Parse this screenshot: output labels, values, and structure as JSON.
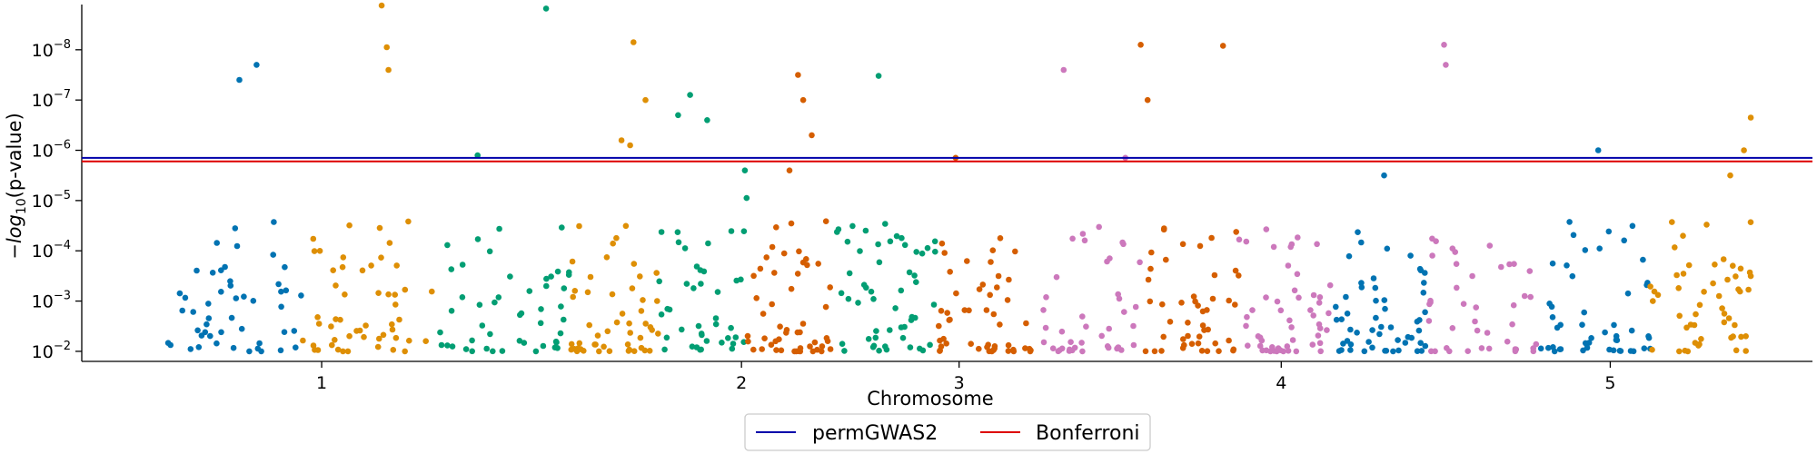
{
  "chart_data": {
    "type": "scatter",
    "title": "",
    "xlabel": "Chromosome",
    "ylabel_parts": [
      "−",
      "log",
      "10",
      "(p-value)"
    ],
    "x_ticks": [
      "1",
      "2",
      "3",
      "4",
      "5"
    ],
    "y_ticks": [
      {
        "base": "10",
        "exp": "−2",
        "value": 2
      },
      {
        "base": "10",
        "exp": "−3",
        "value": 3
      },
      {
        "base": "10",
        "exp": "−4",
        "value": 4
      },
      {
        "base": "10",
        "exp": "−5",
        "value": 5
      },
      {
        "base": "10",
        "exp": "−6",
        "value": 6
      },
      {
        "base": "10",
        "exp": "−7",
        "value": 7
      },
      {
        "base": "10",
        "exp": "−8",
        "value": 8
      }
    ],
    "ylim": [
      1.8,
      8.9
    ],
    "x_range": [
      0,
      101
    ],
    "x_tick_values": [
      14,
      38.5,
      51.2,
      70,
      89.2
    ],
    "chromosome_ranges": [
      [
        5,
        28.5
      ],
      [
        28.5,
        44
      ],
      [
        44,
        62
      ],
      [
        62,
        78.6
      ],
      [
        78.6,
        98
      ]
    ],
    "colors": [
      "#0173b2",
      "#de8f05",
      "#029e73",
      "#d55e00",
      "#cc78bc"
    ],
    "legend_position": "lower-center",
    "legend": [
      {
        "label": "permGWAS2",
        "color": "#0000aa"
      },
      {
        "label": "Bonferroni",
        "color": "#dd0000"
      }
    ],
    "thresholds": [
      {
        "name": "permGWAS2",
        "value": 5.85,
        "color": "#0000aa"
      },
      {
        "name": "Bonferroni",
        "value": 5.78,
        "color": "#dd0000"
      }
    ],
    "significant_points": [
      {
        "chromosome": 1,
        "x": 9.2,
        "y": 7.4
      },
      {
        "chromosome": 1,
        "x": 10.2,
        "y": 7.7
      },
      {
        "chromosome": 1,
        "x": 17.5,
        "y": 8.88
      },
      {
        "chromosome": 1,
        "x": 17.8,
        "y": 8.05
      },
      {
        "chromosome": 1,
        "x": 17.9,
        "y": 7.6
      },
      {
        "chromosome": 1,
        "x": 27.1,
        "y": 8.82
      },
      {
        "chromosome": 1,
        "x": 23.1,
        "y": 5.9
      },
      {
        "chromosome": 2,
        "x": 32.9,
        "y": 7.0
      },
      {
        "chromosome": 2,
        "x": 31.5,
        "y": 6.2
      },
      {
        "chromosome": 2,
        "x": 32.0,
        "y": 6.1
      },
      {
        "chromosome": 2,
        "x": 35.5,
        "y": 7.1
      },
      {
        "chromosome": 2,
        "x": 36.5,
        "y": 6.6
      },
      {
        "chromosome": 2,
        "x": 34.8,
        "y": 6.7
      },
      {
        "chromosome": 2,
        "x": 32.2,
        "y": 8.15
      },
      {
        "chromosome": 2,
        "x": 41.8,
        "y": 7.5
      },
      {
        "chromosome": 2,
        "x": 42.1,
        "y": 7.0
      },
      {
        "chromosome": 2,
        "x": 42.6,
        "y": 6.3
      },
      {
        "chromosome": 2,
        "x": 38.7,
        "y": 5.6
      },
      {
        "chromosome": 2,
        "x": 38.8,
        "y": 5.05
      },
      {
        "chromosome": 2,
        "x": 41.3,
        "y": 5.6
      },
      {
        "chromosome": 3,
        "x": 46.5,
        "y": 7.48
      },
      {
        "chromosome": 3,
        "x": 51.0,
        "y": 5.85
      },
      {
        "chromosome": 3,
        "x": 57.3,
        "y": 7.6
      },
      {
        "chromosome": 3,
        "x": 60.9,
        "y": 5.85
      },
      {
        "chromosome": 4,
        "x": 61.8,
        "y": 8.1
      },
      {
        "chromosome": 4,
        "x": 62.2,
        "y": 7.0
      },
      {
        "chromosome": 4,
        "x": 66.6,
        "y": 8.08
      },
      {
        "chromosome": 4,
        "x": 76.0,
        "y": 5.5
      },
      {
        "chromosome": 5,
        "x": 79.5,
        "y": 8.1
      },
      {
        "chromosome": 5,
        "x": 79.6,
        "y": 7.7
      },
      {
        "chromosome": 5,
        "x": 88.5,
        "y": 6.0
      },
      {
        "chromosome": 5,
        "x": 96.2,
        "y": 5.5
      },
      {
        "chromosome": 5,
        "x": 97.0,
        "y": 6.0
      },
      {
        "chromosome": 5,
        "x": 97.4,
        "y": 6.65
      }
    ]
  }
}
